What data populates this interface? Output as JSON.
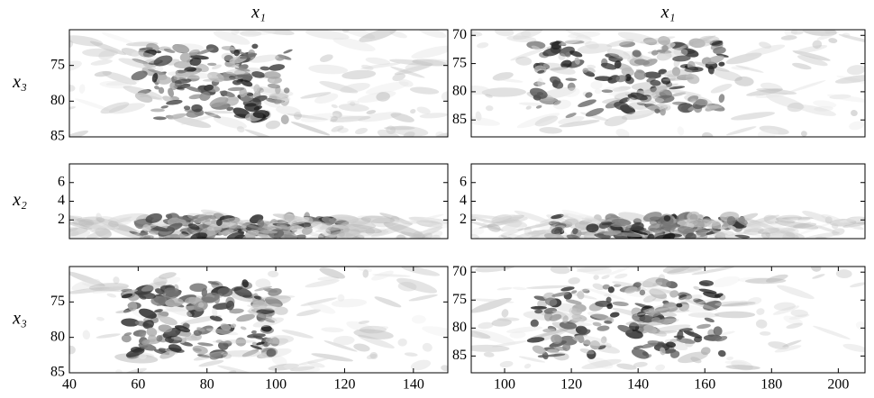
{
  "chart_data": [
    {
      "type": "field",
      "title": "x₁",
      "ylabel": "x₃",
      "xlim": [
        40,
        150
      ],
      "ylim": [
        85,
        70
      ],
      "yticks": [
        75,
        80,
        85
      ]
    },
    {
      "type": "field",
      "title": "x₁",
      "xlim": [
        90,
        208
      ],
      "ylim": [
        88,
        69
      ],
      "yticks": [
        70,
        75,
        80,
        85
      ]
    },
    {
      "type": "field",
      "ylabel": "x₂",
      "xlim": [
        40,
        150
      ],
      "ylim": [
        0,
        8
      ],
      "yticks": [
        2,
        4,
        6
      ]
    },
    {
      "type": "field",
      "xlim": [
        90,
        208
      ],
      "ylim": [
        0,
        8
      ],
      "yticks": [
        2,
        4,
        6
      ]
    },
    {
      "type": "field",
      "ylabel": "x₃",
      "xlim": [
        40,
        150
      ],
      "ylim": [
        85,
        70
      ],
      "yticks": [
        75,
        80,
        85
      ],
      "xticks": [
        40,
        60,
        80,
        100,
        120,
        140
      ]
    },
    {
      "type": "field",
      "xlim": [
        90,
        208
      ],
      "ylim": [
        88,
        69
      ],
      "yticks": [
        70,
        75,
        80,
        85
      ],
      "xticks": [
        100,
        120,
        140,
        160,
        180,
        200
      ]
    }
  ]
}
